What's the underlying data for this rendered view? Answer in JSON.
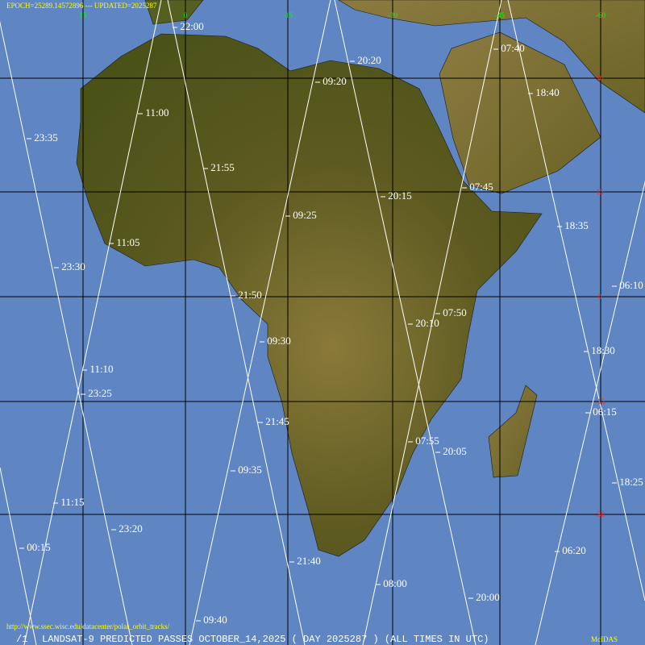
{
  "header": {
    "epoch": "EPOCH=25289.14572896 --- UPDATED=2025287"
  },
  "footer": {
    "frame": "/1",
    "title": "LANDSAT-9 PREDICTED PASSES OCTOBER_14,2025 ( DAY 2025287 ) (ALL TIMES IN UTC)",
    "source": "McIDAS",
    "url": "http://www.ssec.wisc.edu/datacenter/polar_orbit_tracks/"
  },
  "grid": {
    "longitudes": [
      "15",
      "0",
      "-15",
      "-30",
      "-45",
      "-60"
    ],
    "latitudes": [
      "30",
      "15",
      "0",
      "-15",
      "-30"
    ]
  },
  "passes": [
    "22:00",
    "20:20",
    "07:40",
    "09:20",
    "18:40",
    "11:00",
    "23:35",
    "21:55",
    "07:45",
    "20:15",
    "09:25",
    "18:35",
    "11:05",
    "23:30",
    "06:10",
    "21:50",
    "07:50",
    "20:10",
    "09:30",
    "18:30",
    "11:10",
    "23:25",
    "06:15",
    "21:45",
    "07:55",
    "20:05",
    "09:35",
    "18:25",
    "11:15",
    "23:20",
    "00:15",
    "06:20",
    "21:40",
    "08:00",
    "20:00",
    "09:40"
  ]
}
